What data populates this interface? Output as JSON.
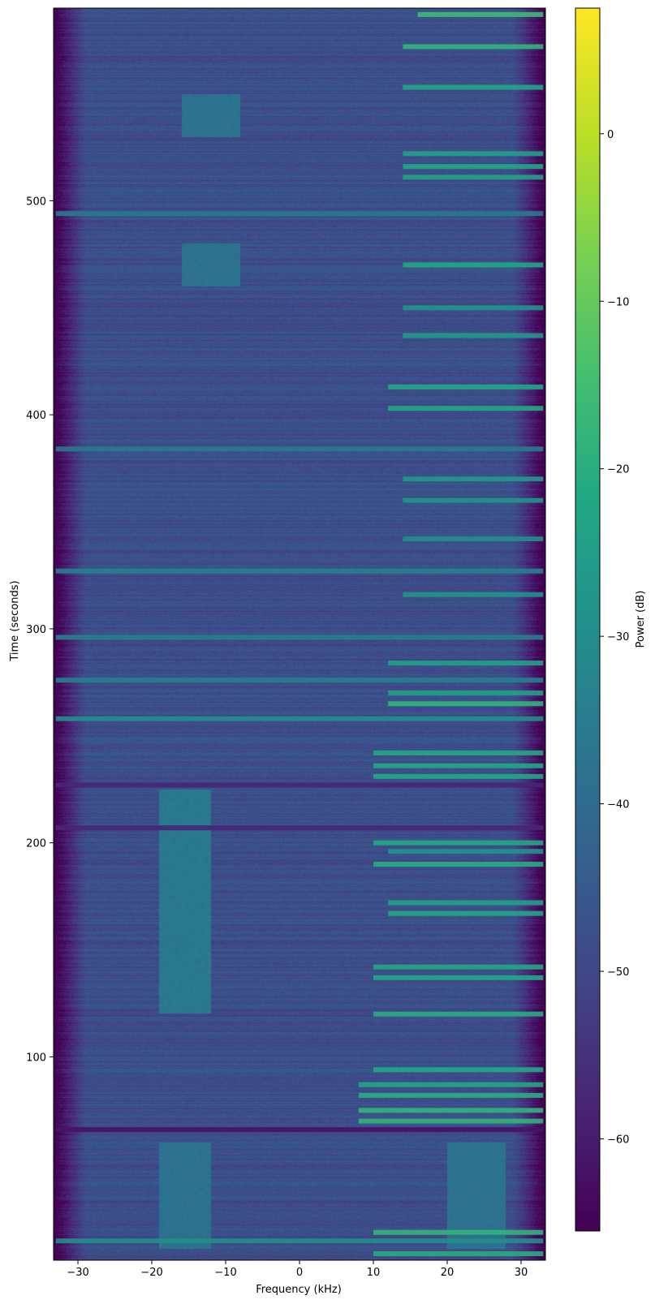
{
  "chart_data": {
    "type": "heatmap",
    "title": "",
    "xlabel": "Frequency (kHz)",
    "ylabel": "Time (seconds)",
    "xlim": [
      -33.3,
      33.3
    ],
    "ylim": [
      5,
      590
    ],
    "x_ticks": [
      -30,
      -20,
      -10,
      0,
      10,
      20,
      30
    ],
    "y_ticks": [
      100,
      200,
      300,
      400,
      500
    ],
    "colorbar": {
      "label": "Power (dB)",
      "colormap": "viridis",
      "range": [
        -65.5,
        7.5
      ],
      "ticks": [
        -60,
        -50,
        -40,
        -30,
        -20,
        -10,
        0
      ]
    },
    "grid": false,
    "noise_floor_db": -48,
    "band_edges_khz": {
      "low_rolloff_start": -29,
      "high_rolloff_start": 29
    },
    "broad_band_regions": [
      {
        "t": [
          10,
          60
        ],
        "f": [
          -19,
          -12
        ],
        "power_db": -38
      },
      {
        "t": [
          10,
          60
        ],
        "f": [
          20,
          28
        ],
        "power_db": -38
      },
      {
        "t": [
          120,
          225
        ],
        "f": [
          -19,
          -12
        ],
        "power_db": -36
      },
      {
        "t": [
          460,
          480
        ],
        "f": [
          -16,
          -8
        ],
        "power_db": -38
      },
      {
        "t": [
          530,
          550
        ],
        "f": [
          -16,
          -8
        ],
        "power_db": -38
      }
    ],
    "bursts": [
      {
        "t": 8,
        "f": [
          10,
          33
        ],
        "power_db": -20
      },
      {
        "t": 14,
        "f": [
          -33,
          33
        ],
        "power_db": -30
      },
      {
        "t": 18,
        "f": [
          10,
          33
        ],
        "power_db": -18
      },
      {
        "t": 66,
        "f": [
          -33,
          33
        ],
        "power_db": -62
      },
      {
        "t": 70,
        "f": [
          8,
          33
        ],
        "power_db": -18
      },
      {
        "t": 75,
        "f": [
          8,
          33
        ],
        "power_db": -18
      },
      {
        "t": 82,
        "f": [
          8,
          33
        ],
        "power_db": -20
      },
      {
        "t": 87,
        "f": [
          8,
          33
        ],
        "power_db": -22
      },
      {
        "t": 94,
        "f": [
          10,
          33
        ],
        "power_db": -22
      },
      {
        "t": 120,
        "f": [
          10,
          33
        ],
        "power_db": -20
      },
      {
        "t": 137,
        "f": [
          10,
          33
        ],
        "power_db": -22
      },
      {
        "t": 142,
        "f": [
          10,
          33
        ],
        "power_db": -22
      },
      {
        "t": 167,
        "f": [
          12,
          33
        ],
        "power_db": -22
      },
      {
        "t": 172,
        "f": [
          12,
          33
        ],
        "power_db": -24
      },
      {
        "t": 190,
        "f": [
          10,
          33
        ],
        "power_db": -20
      },
      {
        "t": 196,
        "f": [
          12,
          33
        ],
        "power_db": -28
      },
      {
        "t": 200,
        "f": [
          10,
          33
        ],
        "power_db": -22
      },
      {
        "t": 207,
        "f": [
          -33,
          33
        ],
        "power_db": -58
      },
      {
        "t": 227,
        "f": [
          -33,
          33
        ],
        "power_db": -58
      },
      {
        "t": 231,
        "f": [
          10,
          33
        ],
        "power_db": -22
      },
      {
        "t": 236,
        "f": [
          10,
          33
        ],
        "power_db": -22
      },
      {
        "t": 242,
        "f": [
          10,
          33
        ],
        "power_db": -22
      },
      {
        "t": 258,
        "f": [
          -33,
          33
        ],
        "power_db": -30
      },
      {
        "t": 265,
        "f": [
          12,
          33
        ],
        "power_db": -18
      },
      {
        "t": 270,
        "f": [
          12,
          33
        ],
        "power_db": -24
      },
      {
        "t": 276,
        "f": [
          -33,
          33
        ],
        "power_db": -34
      },
      {
        "t": 284,
        "f": [
          12,
          33
        ],
        "power_db": -24
      },
      {
        "t": 296,
        "f": [
          -33,
          33
        ],
        "power_db": -34
      },
      {
        "t": 316,
        "f": [
          14,
          33
        ],
        "power_db": -28
      },
      {
        "t": 327,
        "f": [
          -33,
          33
        ],
        "power_db": -34
      },
      {
        "t": 342,
        "f": [
          14,
          33
        ],
        "power_db": -30
      },
      {
        "t": 360,
        "f": [
          14,
          33
        ],
        "power_db": -28
      },
      {
        "t": 370,
        "f": [
          14,
          33
        ],
        "power_db": -26
      },
      {
        "t": 384,
        "f": [
          -33,
          33
        ],
        "power_db": -36
      },
      {
        "t": 403,
        "f": [
          12,
          33
        ],
        "power_db": -22
      },
      {
        "t": 413,
        "f": [
          12,
          33
        ],
        "power_db": -22
      },
      {
        "t": 437,
        "f": [
          14,
          33
        ],
        "power_db": -26
      },
      {
        "t": 450,
        "f": [
          14,
          33
        ],
        "power_db": -28
      },
      {
        "t": 470,
        "f": [
          14,
          33
        ],
        "power_db": -22
      },
      {
        "t": 494,
        "f": [
          -33,
          33
        ],
        "power_db": -36
      },
      {
        "t": 511,
        "f": [
          14,
          33
        ],
        "power_db": -24
      },
      {
        "t": 516,
        "f": [
          14,
          33
        ],
        "power_db": -22
      },
      {
        "t": 522,
        "f": [
          14,
          33
        ],
        "power_db": -24
      },
      {
        "t": 553,
        "f": [
          14,
          33
        ],
        "power_db": -22
      },
      {
        "t": 572,
        "f": [
          14,
          33
        ],
        "power_db": -18
      },
      {
        "t": 587,
        "f": [
          16,
          33
        ],
        "power_db": -16
      }
    ]
  }
}
